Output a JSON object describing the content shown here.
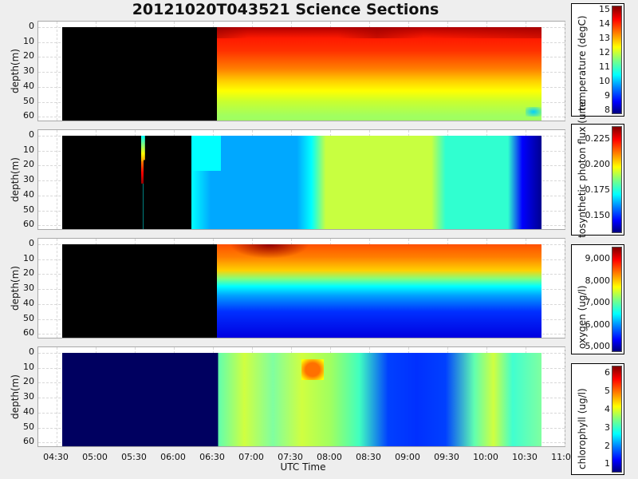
{
  "title": "20121020T043521 Science Sections",
  "xlabel": "UTC Time",
  "ylabel": "depth(m)",
  "x_ticks": [
    "04:30",
    "05:00",
    "05:30",
    "06:00",
    "06:30",
    "07:00",
    "07:30",
    "08:00",
    "08:30",
    "09:00",
    "09:30",
    "10:00",
    "10:30",
    "11:00"
  ],
  "y_ticks": [
    "0",
    "10",
    "20",
    "30",
    "40",
    "50",
    "60"
  ],
  "panels": [
    {
      "name": "temperature",
      "colorbar_label": "temperature (degC)",
      "colorbar_ticks": [
        "15",
        "14",
        "13",
        "12",
        "11",
        "10",
        "9",
        "8"
      ]
    },
    {
      "name": "photosynthetic-photon-flux",
      "colorbar_label": "tosynthetic photon flux (umc",
      "colorbar_ticks": [
        "0.225",
        "0.200",
        "0.175",
        "0.150"
      ]
    },
    {
      "name": "oxygen",
      "colorbar_label": "oxygen (ug/l)",
      "colorbar_ticks": [
        "9,000",
        "8,000",
        "7,000",
        "6,000",
        "5,000"
      ]
    },
    {
      "name": "chlorophyll",
      "colorbar_label": "chlorophyll (ug/l)",
      "colorbar_ticks": [
        "6",
        "5",
        "4",
        "3",
        "2",
        "1"
      ]
    }
  ],
  "chart_data": [
    {
      "type": "heatmap",
      "title": "20121020T043521 Science Sections",
      "xlabel": "UTC Time",
      "ylabel": "depth(m)",
      "x_range": [
        "04:30",
        "11:00"
      ],
      "y_range": [
        0,
        60
      ],
      "y_inverted": true,
      "grid": true,
      "variable": "temperature (degC)",
      "colorbar_range": [
        7.7,
        15.4
      ],
      "colormap": "jet",
      "no_data_until": "06:30",
      "description": "Warm surface (14-15) to ~30m, yellow ~12 at 40m, ~10.5-11 near 60m"
    },
    {
      "type": "heatmap",
      "variable": "photosynthetic photon flux",
      "colorbar_range": [
        0.135,
        0.24
      ],
      "colormap": "jet",
      "xlabel": "UTC Time",
      "ylabel": "depth(m)",
      "description": "Short high-value segment ~05:35-06:00 (0-30m); ~0.16 06:30-07:30; ~0.20 07:45-08:45; ~0.18 08:45-10:15; ~0.14 near 10:30"
    },
    {
      "type": "heatmap",
      "variable": "oxygen (ug/l)",
      "colorbar_range": [
        4400,
        9400
      ],
      "colormap": "jet",
      "xlabel": "UTC Time",
      "ylabel": "depth(m)",
      "no_data_until": "06:30",
      "description": "~8500-9000 at surface, ~7000 at 20-25m, ~5000 at 50-60m"
    },
    {
      "type": "heatmap",
      "variable": "chlorophyll (ug/l)",
      "colorbar_range": [
        0,
        6.1
      ],
      "colormap": "jet",
      "xlabel": "UTC Time",
      "ylabel": "depth(m)",
      "no_data_until": "06:30",
      "description": "Mostly 2.5-3.5; hotspot ~4.5 at 07:30-07:35 10-15m; low ~1 between 08:45-09:40"
    }
  ]
}
